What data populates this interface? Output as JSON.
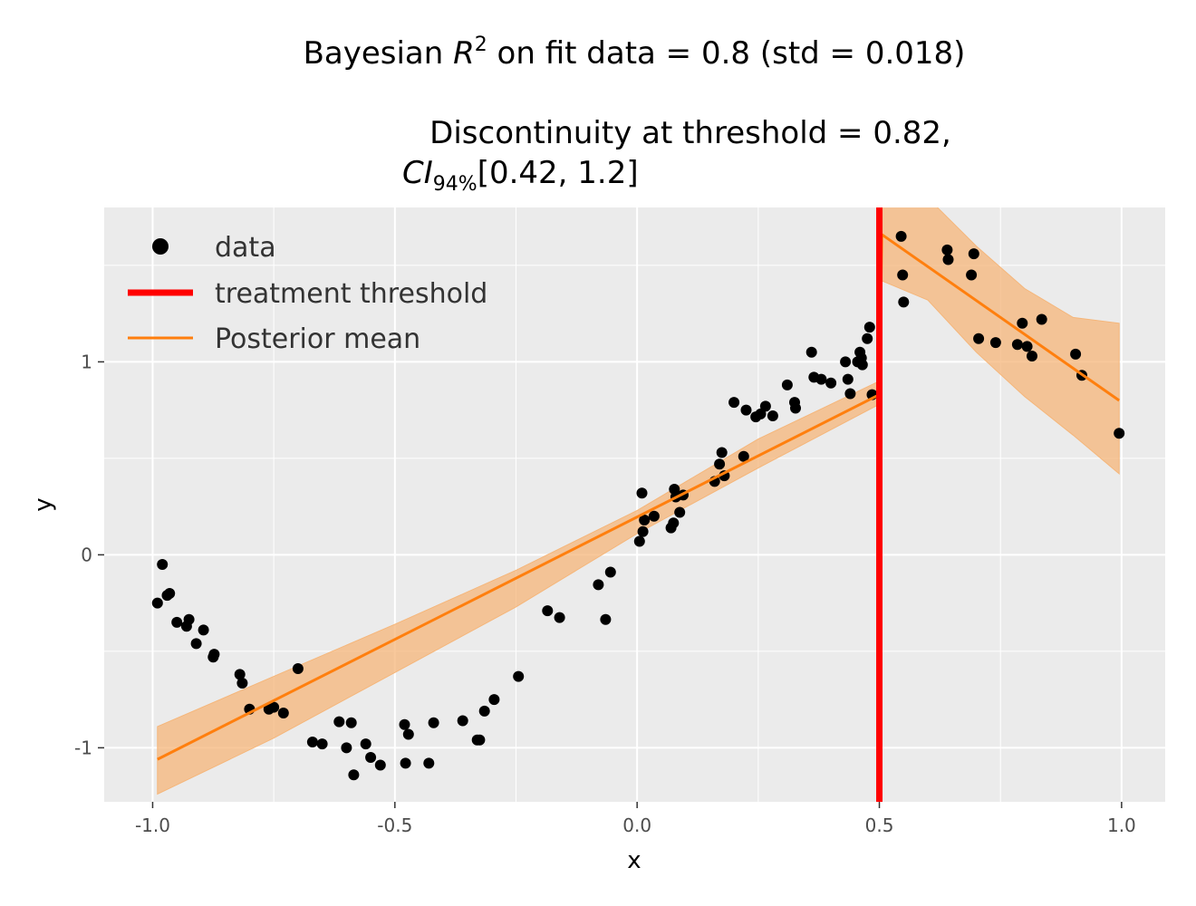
{
  "chart_data": {
    "type": "scatter",
    "title_line1_prefix": "Bayesian ",
    "title_line1_var": "R",
    "title_line1_sup": "2",
    "title_line1_suffix": " on fit data = 0.8 (std = 0.018)",
    "title_line2": "Discontinuity at threshold = 0.82,",
    "title_line3_var": "CI",
    "title_line3_sub": "94%",
    "title_line3_suffix": "[0.42, 1.2]",
    "xlabel": "x",
    "ylabel": "y",
    "xlim": [
      -1.1,
      1.09
    ],
    "ylim": [
      -1.28,
      1.8
    ],
    "xticks": [
      -1.0,
      -0.5,
      0.0,
      0.5,
      1.0
    ],
    "xtick_labels": [
      "-1.0",
      "-0.5",
      "0.0",
      "0.5",
      "1.0"
    ],
    "yticks": [
      -1,
      0,
      1
    ],
    "ytick_labels": [
      "-1",
      "0",
      "1"
    ],
    "grid": true,
    "legend_placement": "top-left",
    "legend": [
      "data",
      "treatment threshold",
      "Posterior mean"
    ],
    "colors": {
      "panel": "#ebebeb",
      "grid": "#ffffff",
      "data": "#000000",
      "threshold": "#ff0000",
      "mean": "#ff7f0e",
      "band": "#f5b67a"
    },
    "threshold_x": 0.5,
    "series": [
      {
        "name": "data",
        "type": "scatter",
        "points": [
          [
            -0.99,
            -0.25
          ],
          [
            -0.98,
            -0.05
          ],
          [
            -0.97,
            -0.21
          ],
          [
            -0.965,
            -0.2
          ],
          [
            -0.95,
            -0.35
          ],
          [
            -0.93,
            -0.37
          ],
          [
            -0.925,
            -0.335
          ],
          [
            -0.91,
            -0.46
          ],
          [
            -0.895,
            -0.39
          ],
          [
            -0.875,
            -0.53
          ],
          [
            -0.873,
            -0.515
          ],
          [
            -0.82,
            -0.62
          ],
          [
            -0.815,
            -0.665
          ],
          [
            -0.8,
            -0.8
          ],
          [
            -0.76,
            -0.8
          ],
          [
            -0.75,
            -0.79
          ],
          [
            -0.73,
            -0.82
          ],
          [
            -0.7,
            -0.59
          ],
          [
            -0.67,
            -0.97
          ],
          [
            -0.65,
            -0.98
          ],
          [
            -0.615,
            -0.865
          ],
          [
            -0.6,
            -1.0
          ],
          [
            -0.59,
            -0.87
          ],
          [
            -0.585,
            -1.14
          ],
          [
            -0.56,
            -0.98
          ],
          [
            -0.55,
            -1.05
          ],
          [
            -0.53,
            -1.09
          ],
          [
            -0.48,
            -0.88
          ],
          [
            -0.478,
            -1.08
          ],
          [
            -0.472,
            -0.93
          ],
          [
            -0.43,
            -1.08
          ],
          [
            -0.42,
            -0.87
          ],
          [
            -0.36,
            -0.86
          ],
          [
            -0.33,
            -0.96
          ],
          [
            -0.325,
            -0.96
          ],
          [
            -0.315,
            -0.81
          ],
          [
            -0.295,
            -0.75
          ],
          [
            -0.245,
            -0.63
          ],
          [
            -0.185,
            -0.29
          ],
          [
            -0.16,
            -0.325
          ],
          [
            -0.08,
            -0.155
          ],
          [
            -0.065,
            -0.335
          ],
          [
            -0.055,
            -0.09
          ],
          [
            0.005,
            0.07
          ],
          [
            0.01,
            0.32
          ],
          [
            0.012,
            0.12
          ],
          [
            0.015,
            0.18
          ],
          [
            0.035,
            0.2
          ],
          [
            0.07,
            0.14
          ],
          [
            0.075,
            0.165
          ],
          [
            0.077,
            0.34
          ],
          [
            0.08,
            0.3
          ],
          [
            0.088,
            0.22
          ],
          [
            0.095,
            0.31
          ],
          [
            0.16,
            0.38
          ],
          [
            0.17,
            0.47
          ],
          [
            0.175,
            0.53
          ],
          [
            0.18,
            0.41
          ],
          [
            0.2,
            0.79
          ],
          [
            0.22,
            0.51
          ],
          [
            0.225,
            0.75
          ],
          [
            0.245,
            0.715
          ],
          [
            0.255,
            0.73
          ],
          [
            0.265,
            0.77
          ],
          [
            0.28,
            0.72
          ],
          [
            0.31,
            0.88
          ],
          [
            0.325,
            0.79
          ],
          [
            0.327,
            0.76
          ],
          [
            0.36,
            1.05
          ],
          [
            0.365,
            0.92
          ],
          [
            0.38,
            0.91
          ],
          [
            0.4,
            0.89
          ],
          [
            0.43,
            1.0
          ],
          [
            0.435,
            0.91
          ],
          [
            0.44,
            0.835
          ],
          [
            0.455,
            1.0
          ],
          [
            0.46,
            1.05
          ],
          [
            0.463,
            1.02
          ],
          [
            0.465,
            0.985
          ],
          [
            0.475,
            1.12
          ],
          [
            0.48,
            1.18
          ],
          [
            0.485,
            0.83
          ],
          [
            0.545,
            1.65
          ],
          [
            0.548,
            1.45
          ],
          [
            0.55,
            1.31
          ],
          [
            0.64,
            1.58
          ],
          [
            0.642,
            1.53
          ],
          [
            0.69,
            1.45
          ],
          [
            0.695,
            1.56
          ],
          [
            0.705,
            1.12
          ],
          [
            0.74,
            1.1
          ],
          [
            0.785,
            1.09
          ],
          [
            0.795,
            1.2
          ],
          [
            0.805,
            1.08
          ],
          [
            0.815,
            1.03
          ],
          [
            0.835,
            1.22
          ],
          [
            0.905,
            1.04
          ],
          [
            0.918,
            0.93
          ],
          [
            0.995,
            0.63
          ]
        ]
      },
      {
        "name": "Posterior mean",
        "type": "line",
        "left": [
          [
            -0.99,
            -1.06
          ],
          [
            0.5,
            0.83
          ]
        ],
        "right": [
          [
            0.505,
            1.66
          ],
          [
            0.995,
            0.8
          ]
        ]
      }
    ],
    "band": {
      "left_upper": [
        [
          -0.99,
          -0.89
        ],
        [
          -0.75,
          -0.63
        ],
        [
          -0.5,
          -0.36
        ],
        [
          -0.25,
          -0.08
        ],
        [
          0.0,
          0.23
        ],
        [
          0.25,
          0.6
        ],
        [
          0.5,
          0.9
        ]
      ],
      "left_lower": [
        [
          -0.99,
          -1.24
        ],
        [
          -0.75,
          -0.95
        ],
        [
          -0.5,
          -0.61
        ],
        [
          -0.25,
          -0.27
        ],
        [
          0.0,
          0.11
        ],
        [
          0.25,
          0.45
        ],
        [
          0.5,
          0.78
        ]
      ],
      "right_upper": [
        [
          0.505,
          1.92
        ],
        [
          0.6,
          1.85
        ],
        [
          0.7,
          1.6
        ],
        [
          0.8,
          1.38
        ],
        [
          0.9,
          1.23
        ],
        [
          0.995,
          1.2
        ]
      ],
      "right_lower": [
        [
          0.505,
          1.42
        ],
        [
          0.6,
          1.32
        ],
        [
          0.7,
          1.05
        ],
        [
          0.8,
          0.82
        ],
        [
          0.9,
          0.62
        ],
        [
          0.995,
          0.42
        ]
      ]
    }
  }
}
